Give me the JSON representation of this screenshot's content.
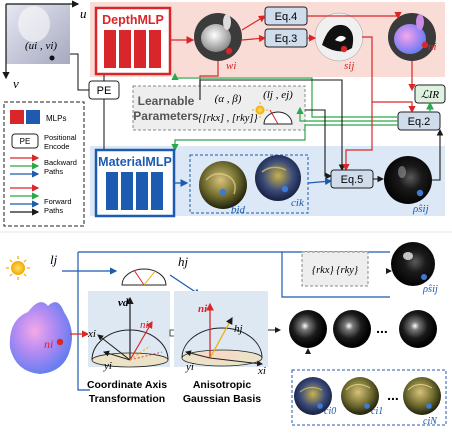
{
  "top": {
    "depth_mlp_title": "DepthMLP",
    "material_mlp_title": "MaterialMLP",
    "pe_label": "PE",
    "eq4": "Eq.4",
    "eq3": "Eq.3",
    "eq5": "Eq.5",
    "eq2": "Eq.2",
    "lir": "ℒIR",
    "learnable_title_1": "Learnable",
    "learnable_title_2": "Parameters",
    "alpha_beta": "(α , β)",
    "light_params": "(lj , ej)",
    "rk_params": "{[rkx] , [rky]}",
    "axis_u": "u",
    "axis_v": "v",
    "pixel_uv": "(ui , vi)",
    "w_label": "wi",
    "s_label": "sij",
    "n_label": "ni",
    "rho_label": "ρ̂sij",
    "b_label": "bid",
    "c_label": "cik"
  },
  "legend": {
    "mlps": "MLPs",
    "positional_1": "Positional",
    "positional_2": "Encode",
    "pe": "PE",
    "backward_1": "Backward",
    "backward_2": "Paths",
    "forward_1": "Forward",
    "forward_2": "Paths"
  },
  "bottom": {
    "lj_label": "lj",
    "hj_top": "hj",
    "vd": "vd",
    "ni_axis": "ni",
    "xi_left": "xi",
    "yi_left": "yi",
    "ni_right": "ni",
    "hj_right": "hj",
    "yi_right": "yi",
    "xi_right": "xi",
    "ni_bunny": "ni",
    "coord_1": "Coordinate Axis",
    "coord_2": "Transformation",
    "aniso_1": "Anisotropic",
    "aniso_2": "Gaussian Basis",
    "rk_box": "{rkx} {rky}",
    "ellipsis_1": "...",
    "ellipsis_2": "...",
    "c0": "ci0",
    "c1": "ci1",
    "cn": "ciN",
    "rho_out": "ρ̂sij"
  },
  "colors": {
    "depth_bg": "#f9dcd6",
    "material_bg": "#dce8f5",
    "mlp_red": "#d9262a",
    "mlp_blue": "#1c5bb0",
    "eq_fill": "#cfdcec",
    "backward_red": "#d9262a",
    "backward_green": "#2aa84a",
    "forward_blue": "#1c5bb0",
    "forward_dark": "#1a1a1a"
  }
}
